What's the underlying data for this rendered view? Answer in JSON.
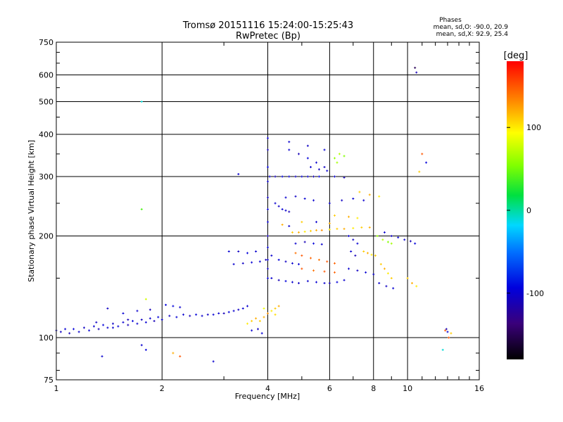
{
  "chart_data": {
    "type": "scatter",
    "title": "Tromsø 20151116 15:24:00-15:25:43",
    "subtitle": "RwPretec (Bp)",
    "xlabel": "Frequency [MHz]",
    "ylabel": "Stationary phase Virtual Height [km]",
    "x_scale": "log",
    "y_scale": "log",
    "xlim": [
      1,
      16
    ],
    "ylim": [
      75,
      750
    ],
    "x_ticks": [
      1,
      2,
      4,
      6,
      8,
      10,
      16
    ],
    "y_ticks": [
      75,
      100,
      200,
      300,
      400,
      500,
      600,
      750
    ],
    "grid": true,
    "phase_stats": {
      "heading": "Phases",
      "line_o": "mean, sd,O: -90.0, 20.9",
      "line_x": "mean, sd,X:  92.9, 25.4"
    },
    "colorbar": {
      "label": "[deg]",
      "range": [
        -180,
        180
      ],
      "ticks": [
        100,
        0,
        -100
      ]
    },
    "series": [
      {
        "name": "",
        "points": [
          [
            1.0,
            105,
            -100
          ],
          [
            1.03,
            104,
            -105
          ],
          [
            1.06,
            106,
            -98
          ],
          [
            1.09,
            103,
            -110
          ],
          [
            1.12,
            106,
            -95
          ],
          [
            1.16,
            104,
            -100
          ],
          [
            1.2,
            107,
            -105
          ],
          [
            1.24,
            105,
            -98
          ],
          [
            1.28,
            108,
            -100
          ],
          [
            1.32,
            106,
            -110
          ],
          [
            1.36,
            109,
            -95
          ],
          [
            1.4,
            107,
            -100
          ],
          [
            1.45,
            110,
            -105
          ],
          [
            1.5,
            108,
            -98
          ],
          [
            1.55,
            111,
            -100
          ],
          [
            1.6,
            109,
            -110
          ],
          [
            1.65,
            112,
            -95
          ],
          [
            1.7,
            110,
            -100
          ],
          [
            1.75,
            113,
            -105
          ],
          [
            1.8,
            111,
            -98
          ],
          [
            1.85,
            114,
            -100
          ],
          [
            1.9,
            112,
            -110
          ],
          [
            1.95,
            115,
            -95
          ],
          [
            2.0,
            113,
            -100
          ],
          [
            2.1,
            116,
            -105
          ],
          [
            2.2,
            115,
            -98
          ],
          [
            2.3,
            117,
            -100
          ],
          [
            2.4,
            116,
            -110
          ],
          [
            2.5,
            117,
            -95
          ],
          [
            2.6,
            116,
            -100
          ],
          [
            2.7,
            117,
            -105
          ],
          [
            2.8,
            117,
            -98
          ],
          [
            2.9,
            118,
            -100
          ],
          [
            3.0,
            118,
            -110
          ],
          [
            3.1,
            119,
            -95
          ],
          [
            3.2,
            120,
            -100
          ],
          [
            3.3,
            121,
            -105
          ],
          [
            3.4,
            122,
            -98
          ],
          [
            3.5,
            124,
            -100
          ],
          [
            1.4,
            122,
            -105
          ],
          [
            1.55,
            118,
            -98
          ],
          [
            1.7,
            120,
            -100
          ],
          [
            1.85,
            121,
            -110
          ],
          [
            2.05,
            125,
            -95
          ],
          [
            2.25,
            123,
            -100
          ],
          [
            1.6,
            113,
            -110
          ],
          [
            2.15,
            124,
            -95
          ],
          [
            1.45,
            107,
            -100
          ],
          [
            1.3,
            111,
            -105
          ],
          [
            1.35,
            88,
            -100
          ],
          [
            1.75,
            500,
            -10
          ],
          [
            1.75,
            240,
            40
          ],
          [
            3.3,
            305,
            -100
          ],
          [
            1.8,
            130,
            80
          ],
          [
            1.75,
            95,
            -100
          ],
          [
            1.8,
            92,
            -95
          ],
          [
            2.15,
            90,
            120
          ],
          [
            2.25,
            88,
            150
          ],
          [
            2.8,
            85,
            -100
          ],
          [
            3.8,
            112,
            110
          ],
          [
            3.9,
            115,
            120
          ],
          [
            4.0,
            118,
            130
          ],
          [
            4.1,
            120,
            100
          ],
          [
            4.2,
            122,
            110
          ],
          [
            4.3,
            124,
            120
          ],
          [
            3.6,
            112,
            110
          ],
          [
            3.7,
            114,
            120
          ],
          [
            3.5,
            110,
            100
          ],
          [
            3.9,
            122,
            90
          ],
          [
            4.2,
            117,
            105
          ],
          [
            3.6,
            105,
            -100
          ],
          [
            3.75,
            106,
            -105
          ],
          [
            3.85,
            103,
            -98
          ],
          [
            3.2,
            165,
            -100
          ],
          [
            3.4,
            166,
            -105
          ],
          [
            3.6,
            167,
            -98
          ],
          [
            3.8,
            168,
            -100
          ],
          [
            3.95,
            170,
            -110
          ],
          [
            3.5,
            178,
            -95
          ],
          [
            3.7,
            180,
            -100
          ],
          [
            3.3,
            180,
            -105
          ],
          [
            3.1,
            180,
            -98
          ],
          [
            4.0,
            390,
            -100
          ],
          [
            4.0,
            360,
            -110
          ],
          [
            4.0,
            320,
            -95
          ],
          [
            4.0,
            290,
            -100
          ],
          [
            4.0,
            260,
            -105
          ],
          [
            4.0,
            240,
            -98
          ],
          [
            4.0,
            220,
            -100
          ],
          [
            4.0,
            200,
            -110
          ],
          [
            4.0,
            185,
            -95
          ],
          [
            4.0,
            170,
            -100
          ],
          [
            4.0,
            160,
            -105
          ],
          [
            4.0,
            150,
            -98
          ],
          [
            4.05,
            300,
            -100
          ],
          [
            4.2,
            300,
            -110
          ],
          [
            4.4,
            300,
            -95
          ],
          [
            4.6,
            300,
            -100
          ],
          [
            4.8,
            300,
            -105
          ],
          [
            5.0,
            300,
            -98
          ],
          [
            5.2,
            300,
            -100
          ],
          [
            5.4,
            300,
            -110
          ],
          [
            5.6,
            300,
            -95
          ],
          [
            4.2,
            250,
            -100
          ],
          [
            4.3,
            245,
            -105
          ],
          [
            4.4,
            240,
            -98
          ],
          [
            4.5,
            238,
            -100
          ],
          [
            4.6,
            236,
            -110
          ],
          [
            4.1,
            175,
            -100
          ],
          [
            4.3,
            170,
            -95
          ],
          [
            4.5,
            168,
            -105
          ],
          [
            4.7,
            166,
            -100
          ],
          [
            4.9,
            165,
            -98
          ],
          [
            4.1,
            150,
            -100
          ],
          [
            4.3,
            148,
            -110
          ],
          [
            4.5,
            147,
            -95
          ],
          [
            4.7,
            146,
            -100
          ],
          [
            4.9,
            145,
            -105
          ],
          [
            5.2,
            147,
            -100
          ],
          [
            5.5,
            146,
            -98
          ],
          [
            5.8,
            145,
            -100
          ],
          [
            6.0,
            145,
            -110
          ],
          [
            6.3,
            146,
            -95
          ],
          [
            6.6,
            148,
            -100
          ],
          [
            4.7,
            205,
            110
          ],
          [
            4.9,
            205,
            120
          ],
          [
            5.1,
            206,
            100
          ],
          [
            5.3,
            207,
            110
          ],
          [
            5.5,
            208,
            120
          ],
          [
            5.7,
            208,
            130
          ],
          [
            6.0,
            209,
            100
          ],
          [
            6.3,
            210,
            110
          ],
          [
            6.6,
            210,
            120
          ],
          [
            7.0,
            211,
            100
          ],
          [
            7.4,
            212,
            110
          ],
          [
            7.8,
            212,
            120
          ],
          [
            4.8,
            178,
            140
          ],
          [
            5.0,
            175,
            150
          ],
          [
            5.3,
            172,
            145
          ],
          [
            5.6,
            170,
            140
          ],
          [
            5.9,
            168,
            150
          ],
          [
            6.2,
            166,
            145
          ],
          [
            5.0,
            160,
            150
          ],
          [
            5.4,
            158,
            140
          ],
          [
            5.8,
            157,
            150
          ],
          [
            6.2,
            156,
            145
          ],
          [
            4.8,
            190,
            -100
          ],
          [
            5.1,
            192,
            -110
          ],
          [
            5.4,
            190,
            -95
          ],
          [
            5.7,
            189,
            -100
          ],
          [
            4.5,
            260,
            -100
          ],
          [
            4.8,
            262,
            -105
          ],
          [
            5.1,
            258,
            -98
          ],
          [
            5.4,
            255,
            -100
          ],
          [
            4.6,
            360,
            -100
          ],
          [
            4.9,
            350,
            -110
          ],
          [
            5.2,
            340,
            -95
          ],
          [
            5.5,
            330,
            -100
          ],
          [
            5.8,
            320,
            -105
          ],
          [
            6.2,
            340,
            60
          ],
          [
            6.4,
            350,
            70
          ],
          [
            6.6,
            345,
            55
          ],
          [
            6.3,
            330,
            65
          ],
          [
            4.6,
            380,
            -100
          ],
          [
            5.2,
            370,
            -105
          ],
          [
            5.8,
            360,
            -98
          ],
          [
            6.8,
            200,
            -100
          ],
          [
            7.0,
            195,
            -105
          ],
          [
            7.2,
            190,
            -98
          ],
          [
            6.9,
            180,
            -100
          ],
          [
            7.1,
            175,
            -110
          ],
          [
            7.5,
            180,
            110
          ],
          [
            7.7,
            178,
            120
          ],
          [
            7.9,
            176,
            100
          ],
          [
            8.1,
            175,
            110
          ],
          [
            8.2,
            200,
            60
          ],
          [
            8.5,
            195,
            70
          ],
          [
            8.8,
            192,
            55
          ],
          [
            9.0,
            190,
            65
          ],
          [
            8.6,
            205,
            -100
          ],
          [
            9.0,
            200,
            -105
          ],
          [
            9.4,
            198,
            -98
          ],
          [
            9.8,
            195,
            -100
          ],
          [
            10.2,
            193,
            -110
          ],
          [
            10.5,
            190,
            -95
          ],
          [
            8.4,
            165,
            110
          ],
          [
            8.6,
            160,
            120
          ],
          [
            8.8,
            155,
            100
          ],
          [
            9.0,
            150,
            110
          ],
          [
            8.3,
            145,
            -100
          ],
          [
            8.7,
            142,
            -105
          ],
          [
            9.1,
            140,
            -98
          ],
          [
            10.0,
            150,
            110
          ],
          [
            10.3,
            145,
            120
          ],
          [
            10.6,
            142,
            100
          ],
          [
            10.5,
            630,
            -150
          ],
          [
            10.6,
            610,
            -110
          ],
          [
            11.0,
            350,
            150
          ],
          [
            11.3,
            330,
            -95
          ],
          [
            10.8,
            310,
            110
          ],
          [
            12.8,
            105,
            150
          ],
          [
            13.0,
            104,
            -100
          ],
          [
            13.3,
            103,
            110
          ],
          [
            12.9,
            106,
            -110
          ],
          [
            13.1,
            100,
            150
          ],
          [
            12.6,
            92,
            -10
          ],
          [
            6.0,
            250,
            -100
          ],
          [
            6.5,
            255,
            -105
          ],
          [
            7.0,
            258,
            -98
          ],
          [
            7.5,
            255,
            -100
          ],
          [
            6.2,
            230,
            110
          ],
          [
            6.8,
            228,
            120
          ],
          [
            7.2,
            226,
            100
          ],
          [
            5.3,
            320,
            -100
          ],
          [
            5.6,
            315,
            -105
          ],
          [
            5.9,
            312,
            -98
          ],
          [
            6.2,
            300,
            -100
          ],
          [
            6.6,
            298,
            -110
          ],
          [
            7.3,
            270,
            110
          ],
          [
            7.8,
            265,
            120
          ],
          [
            8.3,
            262,
            100
          ],
          [
            4.4,
            216,
            120
          ],
          [
            4.6,
            214,
            -100
          ],
          [
            5.0,
            220,
            110
          ],
          [
            5.5,
            220,
            -100
          ],
          [
            6.0,
            218,
            120
          ],
          [
            6.8,
            160,
            -100
          ],
          [
            7.2,
            158,
            -105
          ],
          [
            7.6,
            156,
            -98
          ],
          [
            8.0,
            154,
            -100
          ]
        ]
      }
    ]
  }
}
